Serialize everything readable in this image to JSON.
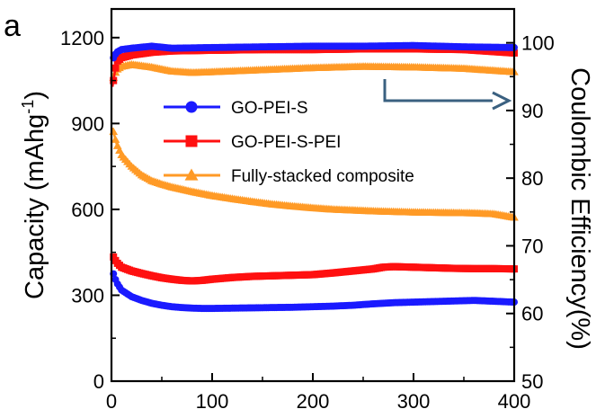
{
  "panel_label": "a",
  "colors": {
    "go_pei_s": "#1a1aff",
    "go_pei_s_pei": "#ff1010",
    "fully_stacked": "#ff9a26",
    "arrow": "#3a6080",
    "axes": "#000000"
  },
  "chart_data": {
    "type": "line",
    "title": "",
    "xlabel": "",
    "ylabel": "Capacity (mAhg-1)",
    "ylabel_parts": {
      "main": "Capacity (mAhg",
      "sup": "-1",
      "tail": ")"
    },
    "y2label": "Coulombic Efficiency(%)",
    "xlim": [
      0,
      400
    ],
    "ylim": [
      0,
      1300
    ],
    "y2lim": [
      50,
      105
    ],
    "xticks": [
      "0",
      "100",
      "200",
      "300",
      "400"
    ],
    "yticks": [
      "0",
      "300",
      "600",
      "900",
      "1200"
    ],
    "y2ticks": [
      "50",
      "60",
      "70",
      "80",
      "90",
      "100"
    ],
    "grid": false,
    "legend_position": "center",
    "arrow_annotation": "efficiency curves read on right axis",
    "series": [
      {
        "name": "GO-PEI-S",
        "axis": "left",
        "marker": "circle",
        "x": [
          1,
          5,
          10,
          20,
          30,
          40,
          50,
          60,
          70,
          80,
          90,
          100,
          120,
          140,
          160,
          180,
          200,
          220,
          240,
          260,
          270,
          280,
          300,
          320,
          340,
          360,
          380,
          400
        ],
        "values": [
          385,
          345,
          318,
          295,
          282,
          272,
          265,
          260,
          257,
          255,
          254,
          254,
          255,
          256,
          257,
          258,
          260,
          262,
          265,
          270,
          272,
          274,
          276,
          278,
          280,
          282,
          279,
          276
        ]
      },
      {
        "name": "GO-PEI-S-PEI",
        "axis": "left",
        "marker": "square",
        "x": [
          1,
          5,
          10,
          20,
          30,
          40,
          50,
          60,
          70,
          80,
          90,
          100,
          120,
          140,
          160,
          180,
          200,
          220,
          240,
          260,
          270,
          280,
          300,
          320,
          340,
          360,
          380,
          400
        ],
        "values": [
          440,
          415,
          398,
          385,
          376,
          368,
          361,
          356,
          352,
          350,
          352,
          356,
          362,
          366,
          368,
          370,
          372,
          378,
          385,
          392,
          398,
          400,
          398,
          396,
          394,
          393,
          393,
          392
        ]
      },
      {
        "name": "Fully-stacked composite",
        "axis": "left",
        "marker": "triangle",
        "x": [
          1,
          5,
          10,
          20,
          30,
          40,
          50,
          60,
          70,
          80,
          90,
          100,
          120,
          140,
          160,
          180,
          200,
          220,
          240,
          260,
          280,
          300,
          320,
          340,
          360,
          380,
          400
        ],
        "values": [
          885,
          830,
          790,
          750,
          720,
          700,
          688,
          678,
          670,
          662,
          655,
          648,
          637,
          627,
          618,
          611,
          605,
          600,
          597,
          594,
          592,
          590,
          589,
          588,
          587,
          584,
          572
        ]
      },
      {
        "name": "GO-PEI-S efficiency",
        "axis": "right",
        "marker": "circle",
        "x": [
          1,
          5,
          10,
          20,
          40,
          60,
          100,
          150,
          200,
          250,
          300,
          350,
          400
        ],
        "values": [
          97.5,
          98.6,
          99.0,
          99.2,
          99.5,
          99.2,
          99.3,
          99.4,
          99.5,
          99.5,
          99.6,
          99.4,
          99.3
        ]
      },
      {
        "name": "GO-PEI-S-PEI efficiency",
        "axis": "right",
        "marker": "square",
        "x": [
          1,
          5,
          10,
          20,
          40,
          60,
          100,
          150,
          200,
          250,
          300,
          350,
          400
        ],
        "values": [
          93.5,
          97.2,
          97.8,
          98.2,
          98.6,
          98.8,
          98.9,
          99.0,
          99.0,
          99.1,
          99.1,
          99.0,
          98.5
        ]
      },
      {
        "name": "Fully-stacked composite efficiency",
        "axis": "right",
        "marker": "triangle",
        "x": [
          1,
          5,
          10,
          20,
          40,
          60,
          80,
          100,
          150,
          200,
          250,
          300,
          350,
          400
        ],
        "values": [
          94.5,
          96.0,
          96.5,
          96.8,
          96.4,
          95.8,
          95.6,
          95.7,
          96.0,
          96.3,
          96.5,
          96.4,
          96.2,
          95.7
        ]
      }
    ]
  }
}
